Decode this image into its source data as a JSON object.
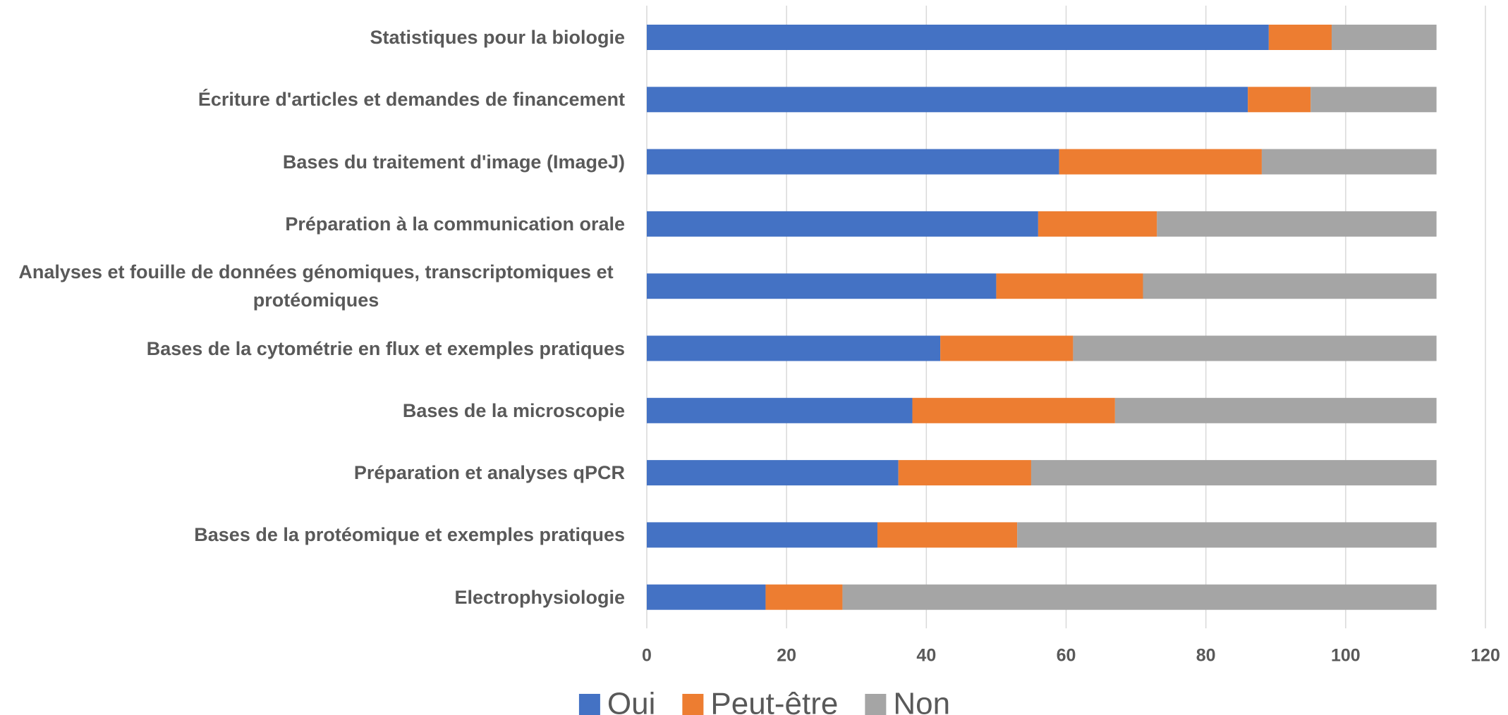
{
  "chart_data": {
    "type": "bar",
    "orientation": "horizontal",
    "stacked": true,
    "categories": [
      "Statistiques pour la biologie",
      "Écriture d'articles et demandes de financement",
      "Bases du traitement d'image (ImageJ)",
      "Préparation à la communication orale",
      "Analyses et fouille de données génomiques, transcriptomiques et protéomiques",
      "Bases de la cytométrie en flux et exemples pratiques",
      "Bases de la microscopie",
      "Préparation et analyses qPCR",
      "Bases de la protéomique et exemples pratiques",
      "Electrophysiologie"
    ],
    "series": [
      {
        "name": "Oui",
        "color": "#4472c4",
        "values": [
          89,
          86,
          59,
          56,
          50,
          42,
          38,
          36,
          33,
          17
        ]
      },
      {
        "name": "Peut-être",
        "color": "#ed7d31",
        "values": [
          9,
          9,
          29,
          17,
          21,
          19,
          29,
          19,
          20,
          11
        ]
      },
      {
        "name": "Non",
        "color": "#a5a5a5",
        "values": [
          15,
          18,
          25,
          40,
          42,
          52,
          46,
          58,
          60,
          85
        ]
      }
    ],
    "xlim": [
      0,
      120
    ],
    "xticks": [
      0,
      20,
      40,
      60,
      80,
      100,
      120
    ],
    "grid": true,
    "legend": "bottom"
  }
}
